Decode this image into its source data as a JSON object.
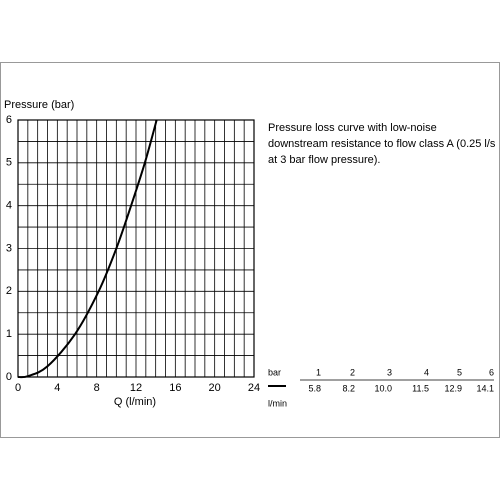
{
  "chart_data": {
    "type": "line",
    "y_label": "Pressure (bar)",
    "x_label": "Q (l/min)",
    "annotation": [
      "Pressure loss curve with low-noise",
      "downstream resistance to flow class A (0.25 l/s",
      "at 3 bar flow pressure)."
    ],
    "x": [
      0,
      1,
      3,
      5.8,
      8.2,
      10.0,
      11.5,
      12.9,
      14.1
    ],
    "series": [
      {
        "name": "Pressure loss",
        "color": "#000000",
        "values": [
          0,
          0.02,
          0.25,
          1,
          2,
          3,
          4,
          5,
          6
        ]
      }
    ],
    "xlim": [
      0,
      24
    ],
    "ylim": [
      0,
      6
    ],
    "xticks": [
      0,
      4,
      8,
      12,
      16,
      20,
      24
    ],
    "yticks": [
      0,
      1,
      2,
      3,
      4,
      5,
      6
    ],
    "grid": true,
    "table": {
      "row_labels": [
        "bar",
        "l/min"
      ],
      "rows": [
        [
          "1",
          "2",
          "3",
          "4",
          "5",
          "6"
        ],
        [
          "5.8",
          "8.2",
          "10.0",
          "11.5",
          "12.9",
          "14.1"
        ]
      ]
    }
  }
}
